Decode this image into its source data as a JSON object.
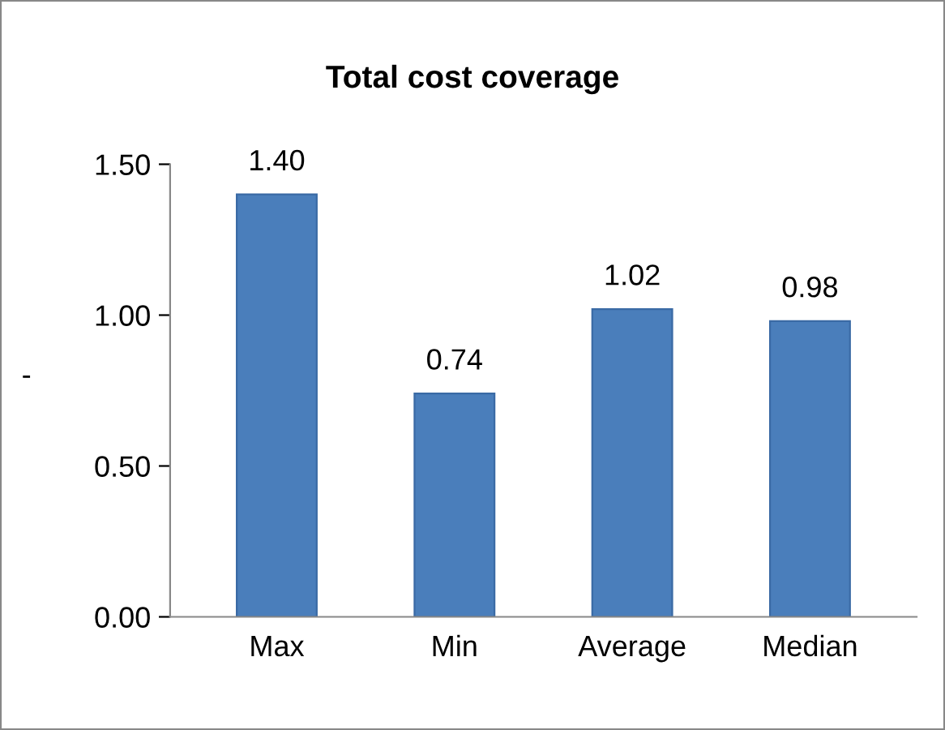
{
  "chart_data": {
    "type": "bar",
    "title": "Total cost coverage",
    "ylabel": "-",
    "categories": [
      "Max",
      "Min",
      "Average",
      "Median"
    ],
    "values": [
      1.4,
      0.74,
      1.02,
      0.98
    ],
    "color": "#4a7ebb",
    "ylim": [
      0,
      1.5
    ],
    "yticks": [
      {
        "value": 0,
        "label": "0.00"
      },
      {
        "value": 0.5,
        "label": "0.50"
      },
      {
        "value": 1.0,
        "label": "1.00"
      },
      {
        "value": 1.5,
        "label": "1.50"
      }
    ],
    "value_labels": [
      "1.40",
      "0.74",
      "1.02",
      "0.98"
    ],
    "grid": false,
    "legend": false
  }
}
